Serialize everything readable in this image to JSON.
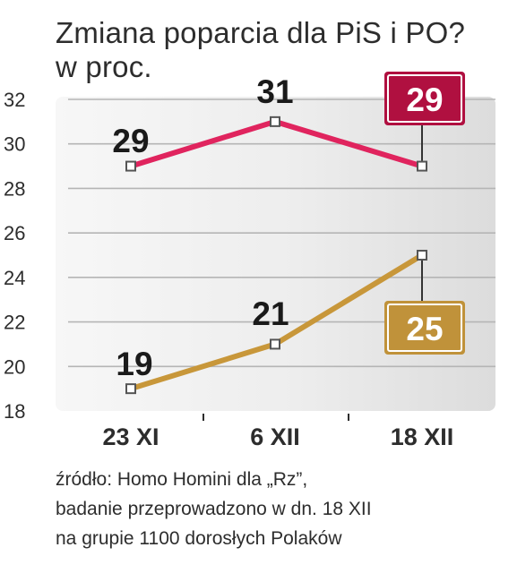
{
  "title": {
    "line1": "Zmiana poparcia dla PiS i PO?",
    "line2": "w proc."
  },
  "source": {
    "line1": "źródło: Homo Homini dla „Rz”,",
    "line2": "badanie przeprowadzono w dn. 18 XII",
    "line3": "na grupie 1100 dorosłych Polaków"
  },
  "chart_data": {
    "type": "line",
    "categories": [
      "23 XI",
      "6 XII",
      "18 XII"
    ],
    "ylim": [
      18,
      32
    ],
    "yticks": [
      18,
      20,
      22,
      24,
      26,
      28,
      30,
      32
    ],
    "grid": true,
    "series": [
      {
        "values": [
          29,
          31,
          29
        ],
        "labels": [
          "29",
          "31",
          "29"
        ],
        "color": "#e0245e",
        "badge_color": "#b01040"
      },
      {
        "values": [
          19,
          21,
          25
        ],
        "labels": [
          "19",
          "21",
          "25"
        ],
        "color": "#c8973a",
        "badge_color": "#c0923a"
      }
    ],
    "colors": {
      "plot_background": "#e8e8e8",
      "gridline": "#b5b5b5",
      "text": "#2d2d2d"
    }
  }
}
